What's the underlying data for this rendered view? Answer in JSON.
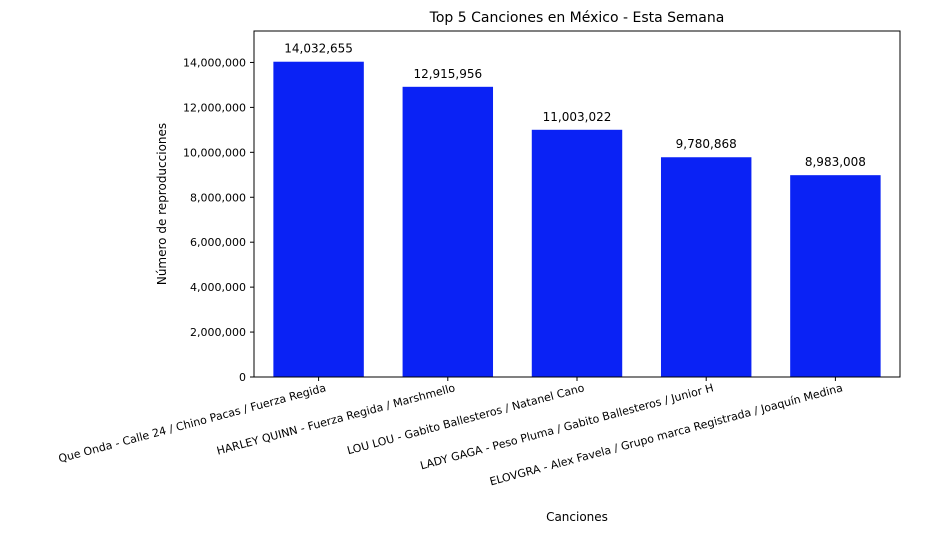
{
  "chart_data": {
    "type": "bar",
    "title": "Top 5 Canciones en México - Esta Semana",
    "xlabel": "Canciones",
    "ylabel": "Número de reproducciones",
    "categories": [
      "Que Onda - Calle 24 / Chino Pacas / Fuerza Regida",
      "HARLEY QUINN - Fuerza Regida / Marshmello",
      "LOU LOU - Gabito Ballesteros / Natanel Cano",
      "LADY GAGA - Peso Pluma / Gabito Ballesteros / Junior H",
      "ELOVGRA - Alex Favela / Grupo marca Registrada / Joaquín Medina"
    ],
    "values": [
      14032655,
      12915956,
      11003022,
      9780868,
      8983008
    ],
    "data_labels": [
      "14,032,655",
      "12,915,956",
      "11,003,022",
      "9,780,868",
      "8,983,008"
    ],
    "ylim": [
      0,
      15400000
    ],
    "yticks": [
      0,
      2000000,
      4000000,
      6000000,
      8000000,
      10000000,
      12000000,
      14000000
    ],
    "ytick_labels": [
      "0",
      "2,000,000",
      "4,000,000",
      "6,000,000",
      "8,000,000",
      "10,000,000",
      "12,000,000",
      "14,000,000"
    ],
    "bar_color": "#0a22f5",
    "grid": false,
    "legend": "none"
  }
}
